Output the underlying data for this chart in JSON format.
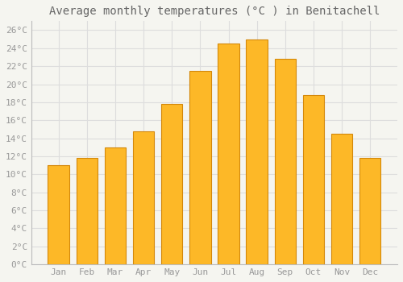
{
  "title": "Average monthly temperatures (°C ) in Benitachell",
  "months": [
    "Jan",
    "Feb",
    "Mar",
    "Apr",
    "May",
    "Jun",
    "Jul",
    "Aug",
    "Sep",
    "Oct",
    "Nov",
    "Dec"
  ],
  "values": [
    11.0,
    11.8,
    13.0,
    14.8,
    17.8,
    21.5,
    24.5,
    25.0,
    22.8,
    18.8,
    14.5,
    11.8
  ],
  "bar_color_top": "#FDB827",
  "bar_color_bottom": "#F5A623",
  "bar_edge_color": "#D4880A",
  "background_color": "#F5F5F0",
  "plot_bg_color": "#F5F5F0",
  "grid_color": "#DDDDDD",
  "ylim": [
    0,
    27
  ],
  "yticks": [
    0,
    2,
    4,
    6,
    8,
    10,
    12,
    14,
    16,
    18,
    20,
    22,
    24,
    26
  ],
  "title_fontsize": 10,
  "tick_fontsize": 8,
  "tick_color": "#999999",
  "title_color": "#666666",
  "font_family": "monospace",
  "bar_width": 0.75
}
